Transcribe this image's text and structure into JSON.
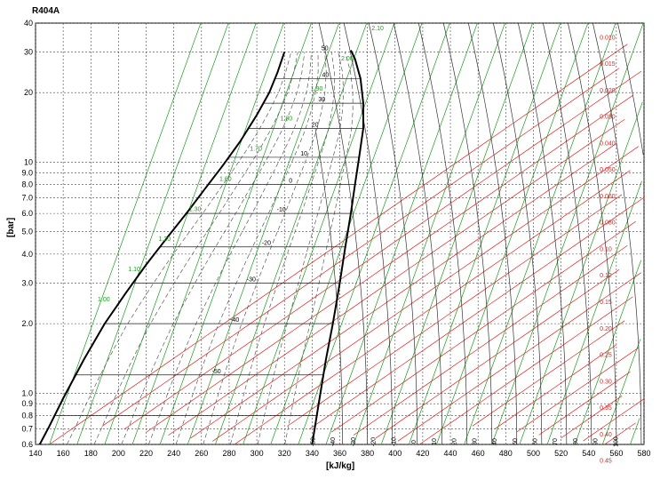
{
  "chart_data": {
    "type": "line",
    "title": "R404A",
    "xlabel": "[kJ/kg]",
    "ylabel": "[bar]",
    "xlim": [
      140,
      580
    ],
    "ylim": [
      0.6,
      40
    ],
    "y_scale": "log",
    "grid": true,
    "x_ticks": [
      "140",
      "160",
      "180",
      "200",
      "220",
      "240",
      "260",
      "280",
      "300",
      "320",
      "340",
      "360",
      "380",
      "400",
      "420",
      "440",
      "460",
      "480",
      "500",
      "520",
      "540",
      "560",
      "580"
    ],
    "y_ticks": [
      {
        "label": "40",
        "value": 40
      },
      {
        "label": "30",
        "value": 30
      },
      {
        "label": "20",
        "value": 20
      },
      {
        "label": "10",
        "value": 10
      },
      {
        "label": "9.0",
        "value": 9
      },
      {
        "label": "8.0",
        "value": 8
      },
      {
        "label": "7.0",
        "value": 7
      },
      {
        "label": "6.0",
        "value": 6
      },
      {
        "label": "5.0",
        "value": 5
      },
      {
        "label": "4.0",
        "value": 4
      },
      {
        "label": "3.0",
        "value": 3
      },
      {
        "label": "2.0",
        "value": 2
      },
      {
        "label": "1.0",
        "value": 1
      },
      {
        "label": "0.9",
        "value": 0.9
      },
      {
        "label": "0.8",
        "value": 0.8
      },
      {
        "label": "0.7",
        "value": 0.7
      },
      {
        "label": "0.6",
        "value": 0.6
      }
    ],
    "colors": {
      "saturation": "#000000",
      "isotherm": "#333333",
      "isochore": "#e02020",
      "quality": "#5a5a5a",
      "isentrope": "#1e9a1e",
      "grid": "#444444"
    },
    "series": [
      {
        "kind": "saturation",
        "points": [
          [
            143,
            0.6
          ],
          [
            150,
            0.72
          ],
          [
            160,
            0.95
          ],
          [
            175,
            1.4
          ],
          [
            190,
            2.0
          ],
          [
            205,
            2.7
          ],
          [
            220,
            3.6
          ],
          [
            235,
            4.7
          ],
          [
            250,
            6.1
          ],
          [
            262,
            7.6
          ],
          [
            275,
            9.6
          ],
          [
            288,
            12.3
          ],
          [
            300,
            16.0
          ],
          [
            309,
            20.0
          ],
          [
            315,
            24.5
          ],
          [
            320,
            30.0
          ]
        ]
      },
      {
        "kind": "saturation",
        "points": [
          [
            340,
            0.6
          ],
          [
            346,
            1.0
          ],
          [
            350,
            1.4
          ],
          [
            355,
            2.0
          ],
          [
            360,
            3.0
          ],
          [
            364,
            4.3
          ],
          [
            368,
            6.0
          ],
          [
            371,
            8.0
          ],
          [
            374,
            10.5
          ],
          [
            377,
            14.0
          ],
          [
            377,
            18.0
          ],
          [
            375,
            23.0
          ],
          [
            371,
            28.0
          ],
          [
            368,
            30.5
          ]
        ]
      }
    ],
    "isotherm_labels": [
      "50",
      "40",
      "30",
      "20",
      "10",
      "0",
      "-10",
      "-20",
      "-30",
      "-40",
      "-50"
    ],
    "entropy_labels": [
      "1.00",
      "1.10",
      "1.20",
      "1.30",
      "1.60",
      "1.70",
      "1.80",
      "1.90",
      "2.00",
      "2.10",
      "2.20",
      "2.30"
    ],
    "isochore_labels": [
      "0.010",
      "0.015",
      "0.020",
      "0.030",
      "0.040",
      "0.050",
      "0.060",
      "0.080",
      "0.10",
      "0.12",
      "0.15",
      "0.20",
      "0.25",
      "0.30",
      "0.35",
      "0.40",
      "0.45"
    ],
    "top_isotherm_labels": [
      "-50",
      "-40",
      "-30",
      "-20",
      "-10",
      "0",
      "10",
      "20",
      "30",
      "40",
      "50",
      "60",
      "70",
      "80",
      "90",
      "100",
      "110",
      "120",
      "130",
      "140",
      "150",
      "160",
      "170",
      "180",
      "190",
      "200"
    ]
  }
}
